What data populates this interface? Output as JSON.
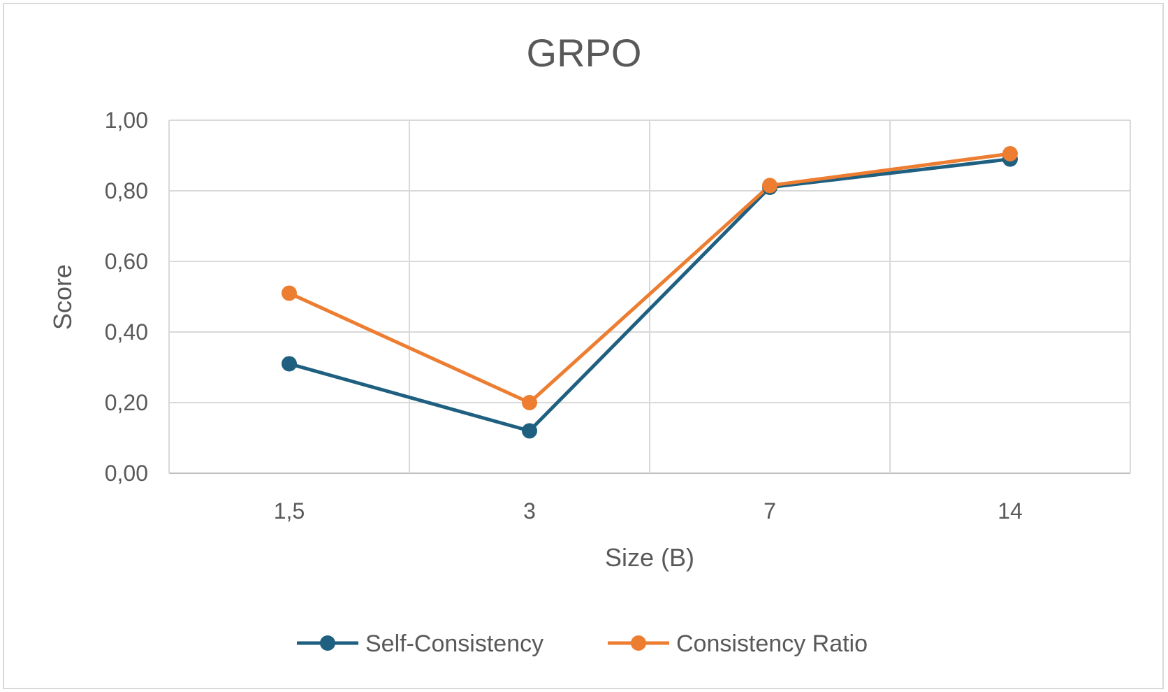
{
  "chart_data": {
    "type": "line",
    "title": "GRPO",
    "xlabel": "Size (B)",
    "ylabel": "Score",
    "categories": [
      "1,5",
      "3",
      "7",
      "14"
    ],
    "ylim": [
      0,
      1
    ],
    "yticks": [
      "0,00",
      "0,20",
      "0,40",
      "0,60",
      "0,80",
      "1,00"
    ],
    "grid": true,
    "legend_position": "bottom",
    "series": [
      {
        "name": "Self-Consistency",
        "values": [
          0.31,
          0.12,
          0.81,
          0.89
        ],
        "color": "#1f5f7f"
      },
      {
        "name": "Consistency Ratio",
        "values": [
          0.51,
          0.2,
          0.815,
          0.905
        ],
        "color": "#ed7d31"
      }
    ]
  }
}
